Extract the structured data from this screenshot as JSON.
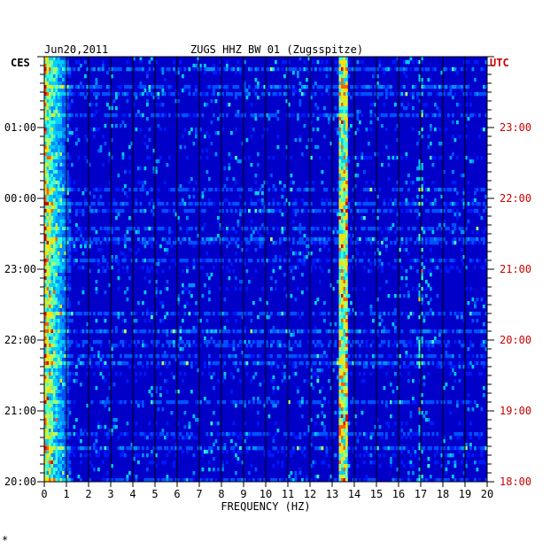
{
  "chart_data": {
    "type": "heatmap",
    "header_date": "Jun20,2011",
    "title": "ZUGS HHZ BW 01 (Zugsspitze)",
    "left_axis_label": "CES",
    "right_axis_label": "UTC",
    "xlabel": "FREQUENCY (HZ)",
    "xlim": [
      0,
      20
    ],
    "x_ticks": [
      "0",
      "1",
      "2",
      "3",
      "4",
      "5",
      "6",
      "7",
      "8",
      "9",
      "10",
      "11",
      "12",
      "13",
      "14",
      "15",
      "16",
      "17",
      "18",
      "19",
      "20"
    ],
    "left_time_ticks": [
      "01:00",
      "00:00",
      "23:00",
      "22:00",
      "21:00",
      "20:00"
    ],
    "right_time_ticks": [
      "23:00",
      "22:00",
      "21:00",
      "20:00",
      "19:00",
      "18:00"
    ],
    "colors": {
      "background": "#0000c8",
      "grid": "#000000",
      "right_labels": "#cc0000",
      "text": "#000000"
    },
    "features": {
      "low_frequency_band_hz": [
        0,
        1.2
      ],
      "persistent_line_hz": 13.5,
      "intermittent_line_hz": 17.0
    },
    "footnote_mark": "*"
  }
}
